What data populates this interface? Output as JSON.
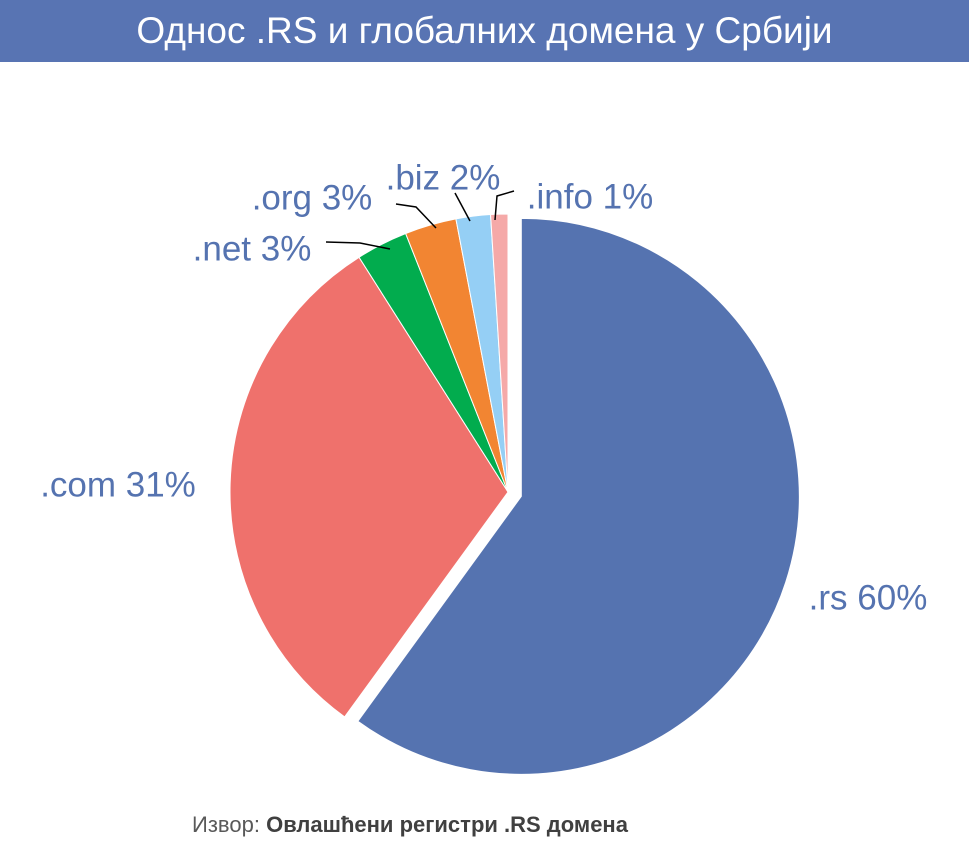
{
  "chart_data": {
    "type": "pie",
    "title": "Однос .RS и глобалних домена у Србији",
    "categories": [
      ".rs",
      ".com",
      ".net",
      ".org",
      ".biz",
      ".info"
    ],
    "values": [
      60,
      31,
      3,
      3,
      2,
      1
    ],
    "labels": [
      ".rs 60%",
      ".com 31%",
      ".net 3%",
      ".org 3%",
      ".biz 2%",
      ".info 1%"
    ],
    "colors": [
      "#5573b0",
      "#ef716c",
      "#02ac4e",
      "#f28532",
      "#95cff5",
      "#f5a9a8"
    ],
    "label_color": "#5573b0",
    "exploded": ".rs",
    "legend": "none"
  },
  "source": {
    "prefix": "Извор: ",
    "name": "Овлашћени регистри .RS домена"
  }
}
